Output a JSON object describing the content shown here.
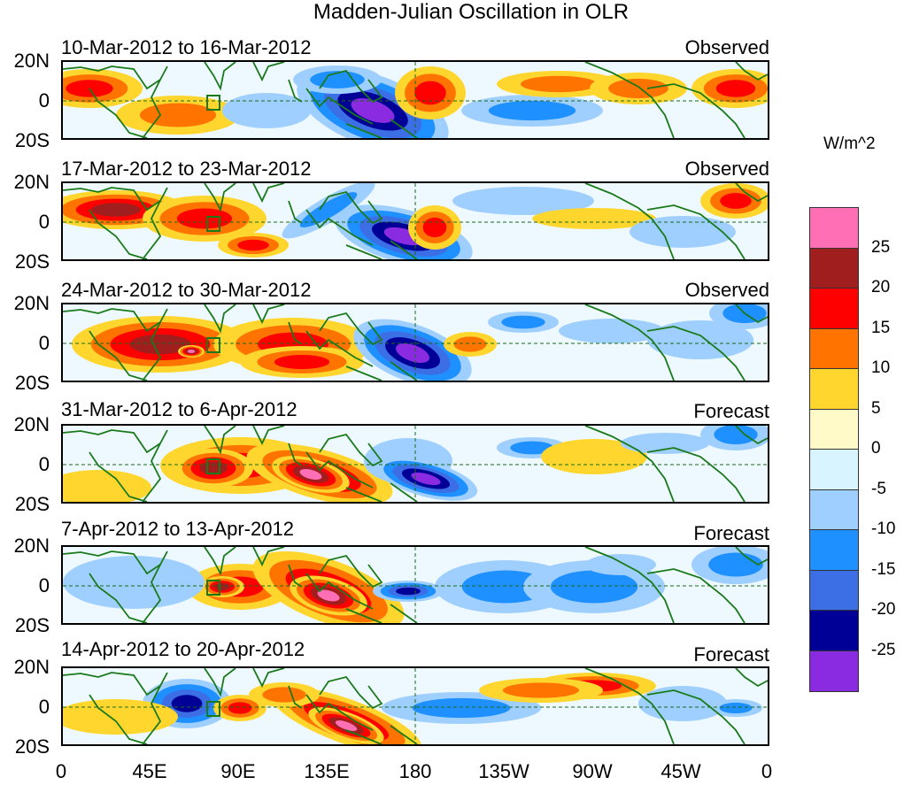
{
  "title": "Madden-Julian Oscillation in OLR",
  "panels": [
    {
      "date_range": "10-Mar-2012 to 16-Mar-2012",
      "kind": "Observed"
    },
    {
      "date_range": "17-Mar-2012 to 23-Mar-2012",
      "kind": "Observed"
    },
    {
      "date_range": "24-Mar-2012 to 30-Mar-2012",
      "kind": "Observed"
    },
    {
      "date_range": "31-Mar-2012 to 6-Apr-2012",
      "kind": "Forecast"
    },
    {
      "date_range": "7-Apr-2012 to 13-Apr-2012",
      "kind": "Forecast"
    },
    {
      "date_range": "14-Apr-2012 to 20-Apr-2012",
      "kind": "Forecast"
    }
  ],
  "lat_labels": [
    "20N",
    "0",
    "20S"
  ],
  "lon_labels": [
    "0",
    "45E",
    "90E",
    "135E",
    "180",
    "135W",
    "90W",
    "45W",
    "0"
  ],
  "colorbar": {
    "units": "W/m^2",
    "levels": [
      "25",
      "20",
      "15",
      "10",
      "5",
      "0",
      "-5",
      "-10",
      "-15",
      "-20",
      "-25"
    ],
    "colors": [
      "#ff6fb5",
      "#a01e1e",
      "#ff0000",
      "#ff7400",
      "#ffd62e",
      "#fffac8",
      "#d8f4ff",
      "#9fcfff",
      "#1e90ff",
      "#3c6ee6",
      "#000096",
      "#8a2be2"
    ]
  }
}
